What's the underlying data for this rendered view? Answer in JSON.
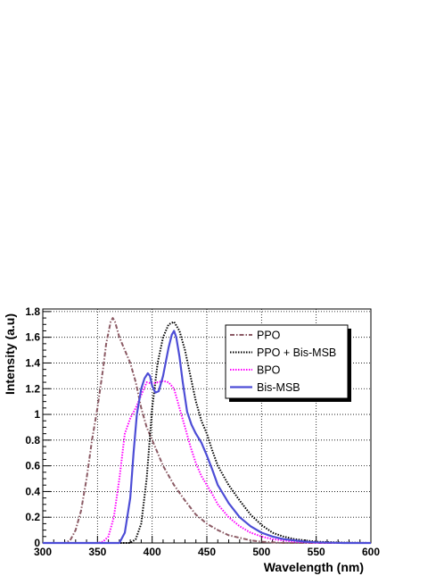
{
  "chart_data": {
    "type": "line",
    "xlabel": "Wavelength (nm)",
    "ylabel": "Intensity (a.u)",
    "xlim": [
      300,
      600
    ],
    "ylim": [
      0,
      1.82
    ],
    "x_ticks": [
      300,
      350,
      400,
      450,
      500,
      550,
      600
    ],
    "y_ticks": [
      0,
      0.2,
      0.4,
      0.6,
      0.8,
      1,
      1.2,
      1.4,
      1.6,
      1.8
    ],
    "y_tick_labels": [
      "0",
      "0.2",
      "0.4",
      "0.6",
      "0.8",
      "1",
      "1.2",
      "1.4",
      "1.6",
      "1.8"
    ],
    "grid": true,
    "legend_position": "top-right",
    "series": [
      {
        "name": "PPO",
        "color": "#8b5a64",
        "style": "dash-dot",
        "x": [
          300,
          320,
          325,
          330,
          335,
          340,
          345,
          350,
          355,
          358,
          362,
          364,
          366,
          370,
          375,
          380,
          385,
          390,
          395,
          400,
          410,
          420,
          430,
          440,
          450,
          460,
          470,
          480,
          490,
          500,
          510,
          520,
          600
        ],
        "y": [
          0,
          0,
          0.02,
          0.1,
          0.25,
          0.5,
          0.8,
          1.05,
          1.35,
          1.55,
          1.72,
          1.75,
          1.72,
          1.6,
          1.5,
          1.4,
          1.25,
          1.05,
          0.9,
          0.8,
          0.6,
          0.45,
          0.33,
          0.22,
          0.15,
          0.1,
          0.06,
          0.04,
          0.02,
          0.01,
          0.005,
          0,
          0
        ]
      },
      {
        "name": "PPO + Bis-MSB",
        "color": "#000000",
        "style": "dotted",
        "x": [
          300,
          380,
          385,
          390,
          395,
          400,
          405,
          410,
          415,
          420,
          425,
          430,
          435,
          440,
          445,
          450,
          455,
          460,
          470,
          480,
          490,
          500,
          510,
          520,
          530,
          550,
          575,
          600
        ],
        "y": [
          0,
          0,
          0.03,
          0.15,
          0.5,
          1.05,
          1.4,
          1.6,
          1.7,
          1.72,
          1.65,
          1.5,
          1.3,
          1.1,
          0.95,
          0.85,
          0.72,
          0.6,
          0.45,
          0.33,
          0.22,
          0.14,
          0.08,
          0.05,
          0.03,
          0.01,
          0.003,
          0
        ]
      },
      {
        "name": "BPO",
        "color": "#ff00ff",
        "style": "dotted",
        "x": [
          300,
          350,
          355,
          360,
          365,
          370,
          375,
          380,
          385,
          390,
          395,
          400,
          405,
          410,
          415,
          420,
          425,
          430,
          435,
          440,
          445,
          450,
          455,
          460,
          470,
          480,
          490,
          500,
          510,
          520,
          530,
          540,
          550,
          600
        ],
        "y": [
          0,
          0,
          0.01,
          0.05,
          0.2,
          0.5,
          0.85,
          0.97,
          1.05,
          1.15,
          1.25,
          1.24,
          1.25,
          1.26,
          1.25,
          1.2,
          1.05,
          0.9,
          0.75,
          0.62,
          0.52,
          0.45,
          0.38,
          0.3,
          0.2,
          0.13,
          0.08,
          0.05,
          0.03,
          0.02,
          0.01,
          0.005,
          0,
          0
        ]
      },
      {
        "name": "Bis-MSB",
        "color": "#4d4dd6",
        "style": "solid",
        "x": [
          300,
          370,
          375,
          380,
          383,
          386,
          390,
          393,
          396,
          398,
          400,
          403,
          406,
          410,
          415,
          418,
          420,
          422,
          425,
          428,
          432,
          436,
          440,
          445,
          450,
          455,
          460,
          470,
          480,
          490,
          500,
          510,
          520,
          530,
          540,
          550,
          575,
          600
        ],
        "y": [
          0,
          0,
          0.08,
          0.35,
          0.7,
          1.0,
          1.2,
          1.28,
          1.32,
          1.3,
          1.22,
          1.17,
          1.18,
          1.3,
          1.52,
          1.62,
          1.65,
          1.6,
          1.45,
          1.25,
          1.02,
          0.92,
          0.85,
          0.78,
          0.68,
          0.57,
          0.45,
          0.31,
          0.2,
          0.13,
          0.08,
          0.05,
          0.03,
          0.02,
          0.01,
          0.005,
          0,
          0
        ]
      }
    ]
  }
}
